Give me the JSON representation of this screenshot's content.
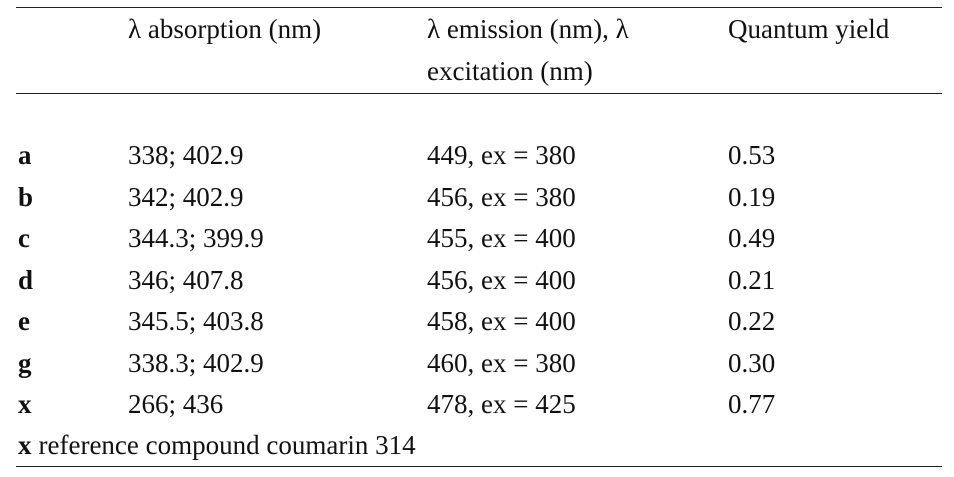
{
  "table": {
    "header": [
      "λ absorption (nm)",
      "λ emission (nm), λ excitation (nm)",
      "Quantum yield"
    ],
    "rows": [
      {
        "label": "a",
        "cells": [
          "338; 402.9",
          "449, ex = 380",
          "0.53"
        ]
      },
      {
        "label": "b",
        "cells": [
          "342; 402.9",
          "456, ex = 380",
          "0.19"
        ]
      },
      {
        "label": "c",
        "cells": [
          "344.3; 399.9",
          "455, ex = 400",
          "0.49"
        ]
      },
      {
        "label": "d",
        "cells": [
          "346; 407.8",
          "456, ex = 400",
          "0.21"
        ]
      },
      {
        "label": "e",
        "cells": [
          "345.5; 403.8",
          "458, ex = 400",
          "0.22"
        ]
      },
      {
        "label": "g",
        "cells": [
          "338.3; 402.9",
          "460, ex = 380",
          "0.30"
        ]
      },
      {
        "label": "x",
        "cells": [
          "266; 436",
          "478, ex = 425",
          "0.77"
        ]
      }
    ],
    "footnote": {
      "label": "x",
      "text": "reference compound coumarin 314"
    }
  }
}
